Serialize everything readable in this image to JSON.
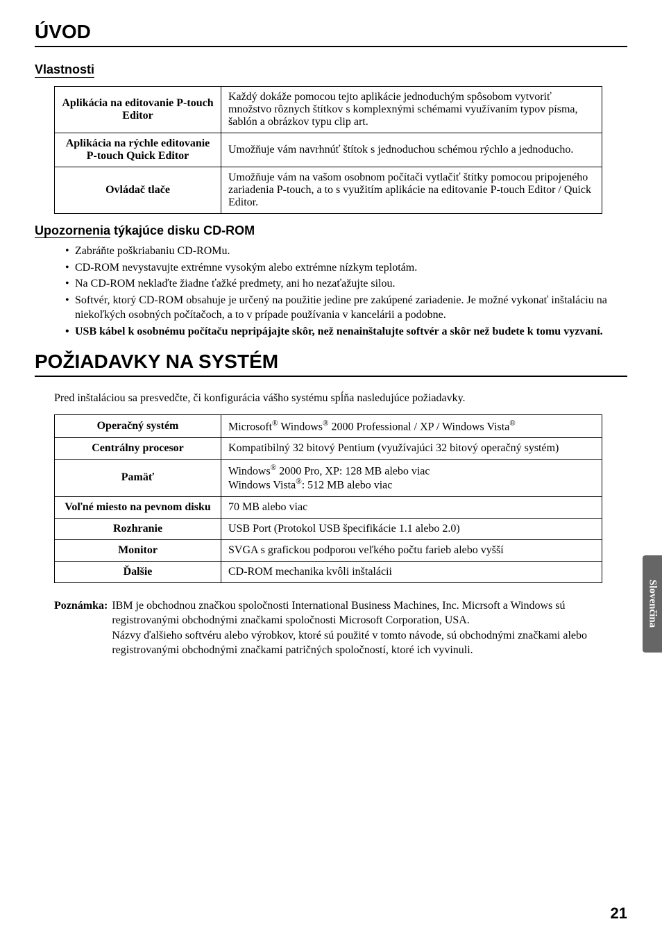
{
  "page": {
    "number": "21",
    "side_tab": "Slovenčina",
    "colors": {
      "bg": "#ffffff",
      "text": "#000000",
      "tab_bg": "#666666",
      "tab_text": "#ffffff",
      "rule": "#000000"
    }
  },
  "intro": {
    "heading": "ÚVOD",
    "features_heading": "Vlastnosti",
    "features_table": [
      {
        "label": "Aplikácia na editovanie P-touch Editor",
        "desc": "Každý dokáže pomocou tejto aplikácie jednoduchým spôsobom vytvoriť množstvo rôznych štítkov s komplexnými schémami využívaním typov písma, šablón a obrázkov typu clip art."
      },
      {
        "label": "Aplikácia na rýchle editovanie P-touch Quick Editor",
        "desc": "Umožňuje vám navrhnúť štítok s jednoduchou schémou rýchlo a jednoducho."
      },
      {
        "label": "Ovládač tlače",
        "desc": "Umožňuje vám na vašom osobnom počítači vytlačiť štítky pomocou pripojeného zariadenia P-touch, a to s využitím aplikácie na editovanie P-touch Editor / Quick Editor."
      }
    ],
    "warnings_heading_underlined": "Upozornenia",
    "warnings_heading_rest": " týkajúce disku CD-ROM",
    "warnings": [
      {
        "text": "Zabráňte poškriabaniu CD-ROMu.",
        "bold": false
      },
      {
        "text": "CD-ROM nevystavujte extrémne vysokým alebo extrémne nízkym teplotám.",
        "bold": false
      },
      {
        "text": "Na CD-ROM neklaďte žiadne ťažké predmety, ani ho nezaťažujte silou.",
        "bold": false
      },
      {
        "text": "Softvér, ktorý CD-ROM obsahuje je určený na použitie jedine pre zakúpené zariadenie. Je možné vykonať inštaláciu na niekoľkých osobných počítačoch, a to v prípade používania v kancelárii a podobne.",
        "bold": false
      },
      {
        "text": "USB kábel k osobnému počítaču nepripájajte skôr, než nenainštalujte softvér a skôr než budete k tomu vyzvaní.",
        "bold": true
      }
    ]
  },
  "sysreq": {
    "heading": "POŽIADAVKY NA SYSTÉM",
    "intro": "Pred inštaláciou sa presvedčte, či konfigurácia vášho systému spĺňa nasledujúce požiadavky.",
    "rows": [
      {
        "label": "Operačný systém",
        "value_html": "Microsoft<sup>®</sup> Windows<sup>®</sup> 2000 Professional / XP / Windows Vista<sup>®</sup>"
      },
      {
        "label": "Centrálny procesor",
        "value_html": "Kompatibilný 32 bitový Pentium (využívajúci 32 bitový operačný systém)"
      },
      {
        "label": "Pamäť",
        "value_html": "Windows<sup>®</sup> 2000 Pro, XP: 128 MB alebo viac<br>Windows Vista<sup>®</sup>: 512 MB alebo viac"
      },
      {
        "label": "Voľné miesto na pevnom disku",
        "value_html": "70 MB alebo viac"
      },
      {
        "label": "Rozhranie",
        "value_html": "USB Port (Protokol USB špecifikácie 1.1 alebo 2.0)"
      },
      {
        "label": "Monitor",
        "value_html": "SVGA s grafickou podporou veľkého počtu farieb alebo vyšší"
      },
      {
        "label": "Ďalšie",
        "value_html": "CD-ROM mechanika kvôli inštalácii"
      }
    ]
  },
  "note": {
    "label": "Poznámka:",
    "body": "IBM je obchodnou značkou spoločnosti International Business Machines, Inc. Micrsoft a Windows sú registrovanými obchodnými značkami spoločnosti Microsoft Corporation, USA.\nNázvy ďalšieho softvéru alebo výrobkov, ktoré sú použité v tomto návode, sú obchodnými značkami alebo registrovanými obchodnými značkami patričných spoločností, ktoré ich vyvinuli."
  }
}
